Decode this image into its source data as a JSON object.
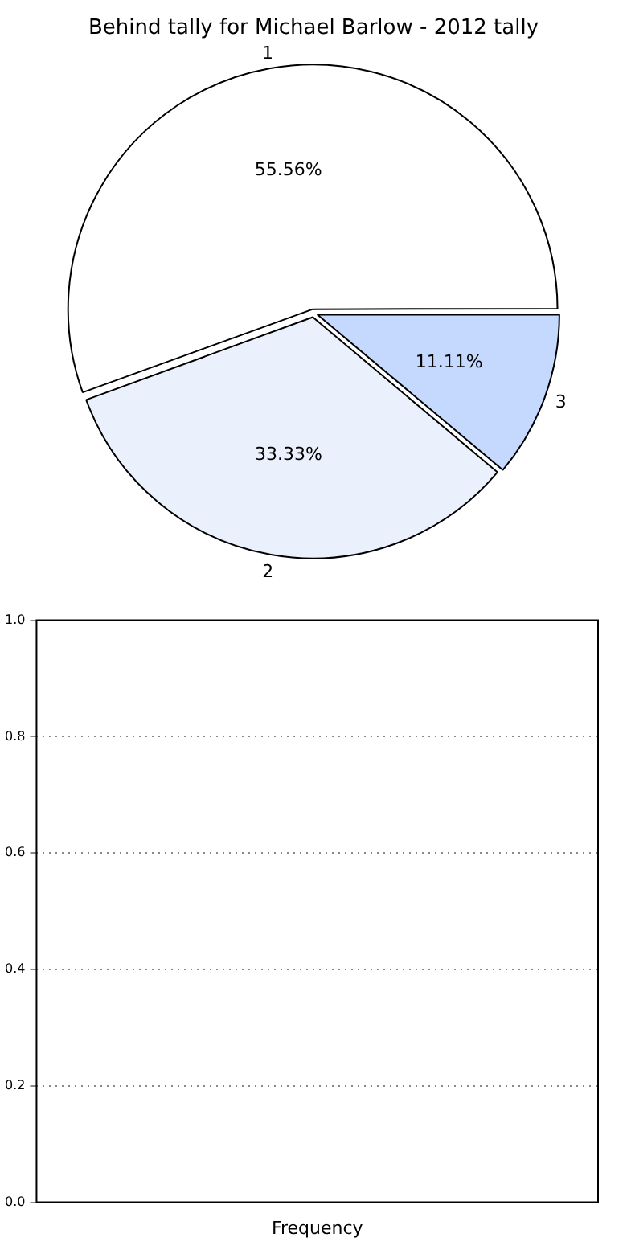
{
  "chart_data": [
    {
      "type": "pie",
      "title": "Behind tally for Michael Barlow - 2012 tally",
      "categories": [
        "1",
        "2",
        "3"
      ],
      "values": [
        55.56,
        33.33,
        11.11
      ],
      "colors": [
        "#ffffff",
        "#eaf0fc",
        "#c5d8fe"
      ],
      "value_labels": [
        "55.56%",
        "33.33%",
        "11.11%"
      ],
      "legend": false
    },
    {
      "type": "bar",
      "categories": [
        "Frequency"
      ],
      "values": [
        0
      ],
      "ylim": [
        0,
        1
      ],
      "yticks": [
        {
          "value": 0,
          "label": "0.0"
        },
        {
          "value": 0.2,
          "label": "0.2"
        },
        {
          "value": 0.4,
          "label": "0.4"
        },
        {
          "value": 0.6,
          "label": "0.6"
        },
        {
          "value": 0.8,
          "label": "0.8"
        },
        {
          "value": 1,
          "label": "1.0"
        }
      ],
      "grid": "y",
      "legend": false
    }
  ]
}
